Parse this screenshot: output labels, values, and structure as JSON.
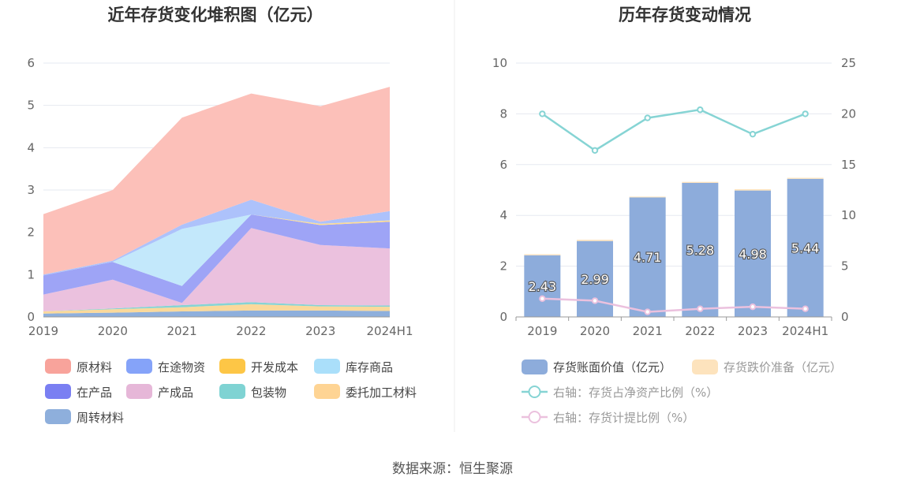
{
  "source_text": "数据来源：恒生聚源",
  "chart_data": [
    {
      "type": "area",
      "title": "近年存货变化堆积图（亿元）",
      "categories": [
        "2019",
        "2020",
        "2021",
        "2022",
        "2023",
        "2024H1"
      ],
      "ylim": [
        0,
        6
      ],
      "yticks": [
        "0",
        "1",
        "2",
        "3",
        "4",
        "5",
        "6"
      ],
      "grid": true,
      "legend_position": "bottom",
      "stack_order_bottom_to_top": [
        "周转材料",
        "委托加工材料",
        "包装物",
        "产成品",
        "在产品",
        "库存商品",
        "开发成本",
        "在途物资",
        "原材料"
      ],
      "series": [
        {
          "name": "周转材料",
          "color": "#8eafdc",
          "values": [
            0.08,
            0.1,
            0.13,
            0.15,
            0.15,
            0.14
          ]
        },
        {
          "name": "委托加工材料",
          "color": "#fbd99a",
          "values": [
            0.05,
            0.08,
            0.1,
            0.15,
            0.1,
            0.1
          ]
        },
        {
          "name": "包装物",
          "color": "#86d4d4",
          "values": [
            0.0,
            0.02,
            0.05,
            0.05,
            0.03,
            0.03
          ]
        },
        {
          "name": "产成品",
          "color": "#ebc1de",
          "values": [
            0.4,
            0.68,
            0.05,
            1.75,
            1.42,
            1.35
          ]
        },
        {
          "name": "在产品",
          "color": "#9ea4f6",
          "values": [
            0.45,
            0.42,
            0.4,
            0.32,
            0.47,
            0.63
          ]
        },
        {
          "name": "库存商品",
          "color": "#c3e8fb",
          "values": [
            0.0,
            0.0,
            1.35,
            0.0,
            0.0,
            0.0
          ]
        },
        {
          "name": "开发成本",
          "color": "#fedc91",
          "values": [
            0.0,
            0.0,
            0.0,
            0.0,
            0.03,
            0.03
          ]
        },
        {
          "name": "在途物资",
          "color": "#adc2fb",
          "values": [
            0.02,
            0.03,
            0.1,
            0.35,
            0.05,
            0.22
          ]
        },
        {
          "name": "原材料",
          "color": "#fcc0b9",
          "values": [
            1.43,
            1.67,
            2.53,
            2.51,
            2.73,
            2.94
          ]
        }
      ],
      "legend": [
        {
          "name": "原材料",
          "color": "#f8a39b"
        },
        {
          "name": "在途物资",
          "color": "#85a3f9"
        },
        {
          "name": "开发成本",
          "color": "#fdc646"
        },
        {
          "name": "库存商品",
          "color": "#aadffa"
        },
        {
          "name": "在产品",
          "color": "#7a7ff2"
        },
        {
          "name": "产成品",
          "color": "#e6b7d8"
        },
        {
          "name": "包装物",
          "color": "#7fd3d3"
        },
        {
          "name": "委托加工材料",
          "color": "#fed494"
        },
        {
          "name": "周转材料",
          "color": "#8eafdc"
        }
      ]
    },
    {
      "type": "bar+line",
      "title": "历年存货变动情况",
      "categories": [
        "2019",
        "2020",
        "2021",
        "2022",
        "2023",
        "2024H1"
      ],
      "ylim": [
        0,
        10
      ],
      "yticks": [
        "0",
        "2",
        "4",
        "6",
        "8",
        "10"
      ],
      "y2lim": [
        0,
        25
      ],
      "y2ticks": [
        "0",
        "5",
        "10",
        "15",
        "20",
        "25"
      ],
      "grid": true,
      "legend_position": "bottom",
      "bars": [
        {
          "name": "存货账面价值（亿元）",
          "color": "#8dacdb",
          "values": [
            2.43,
            2.99,
            4.71,
            5.28,
            4.98,
            5.44
          ],
          "labels": [
            "2.43",
            "2.99",
            "4.71",
            "5.28",
            "4.98",
            "5.44"
          ]
        },
        {
          "name": "存货跌价准备（亿元）",
          "color": "#fde3bd",
          "values": [
            0.04,
            0.05,
            0.03,
            0.04,
            0.05,
            0.04
          ]
        }
      ],
      "lines": [
        {
          "name": "右轴：存货占净资产比例（%）",
          "color": "#86d4d4",
          "axis": "right",
          "values": [
            20.0,
            16.4,
            19.6,
            20.4,
            18.0,
            20.0
          ]
        },
        {
          "name": "右轴：存货计提比例（%）",
          "color": "#ebc1de",
          "axis": "right",
          "values": [
            1.8,
            1.6,
            0.5,
            0.8,
            1.0,
            0.8
          ]
        }
      ]
    }
  ]
}
